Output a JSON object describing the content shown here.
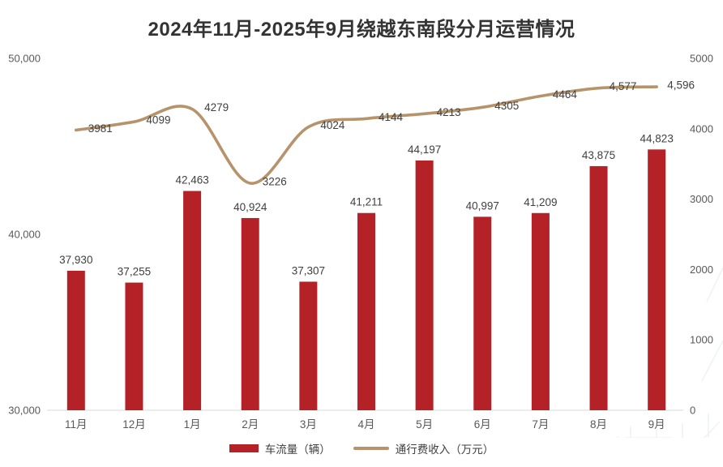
{
  "chart_data": {
    "type": "combo",
    "title": "2024年11月-2025年9月绕越东南段分月运营情况",
    "categories": [
      "11月",
      "12月",
      "1月",
      "2月",
      "3月",
      "4月",
      "5月",
      "6月",
      "7月",
      "8月",
      "9月"
    ],
    "series": [
      {
        "name": "车流量（辆）",
        "type": "bar",
        "axis": "left",
        "color": "#b42127",
        "values": [
          37930,
          37255,
          42463,
          40924,
          37307,
          41211,
          44197,
          40997,
          41209,
          43875,
          44823
        ],
        "labels": [
          "37,930",
          "37,255",
          "42,463",
          "40,924",
          "37,307",
          "41,211",
          "44,197",
          "40,997",
          "41,209",
          "43,875",
          "44,823"
        ]
      },
      {
        "name": "通行费收入（万元）",
        "type": "line",
        "axis": "right",
        "color": "#b6936b",
        "values": [
          3981,
          4099,
          4279,
          3226,
          4024,
          4144,
          4213,
          4305,
          4464,
          4577,
          4596
        ],
        "labels": [
          "3981",
          "4099",
          "4279",
          "3226",
          "4024",
          "4144",
          "4213",
          "4305",
          "4464",
          "4,577",
          "4,596"
        ]
      }
    ],
    "left_axis": {
      "min": 30000,
      "max": 50000,
      "tick_values": [
        50000,
        40000,
        30000
      ],
      "tick_labels": [
        "50,000",
        "40,000",
        "30,000"
      ]
    },
    "right_axis": {
      "min": 0,
      "max": 5000,
      "tick_values": [
        5000,
        4000,
        3000,
        2000,
        1000,
        0
      ],
      "tick_labels": [
        "5000",
        "4000",
        "3000",
        "2000",
        "1000",
        "0"
      ]
    },
    "legend_position": "bottom",
    "grid": false,
    "colors": {
      "axis_line": "#d9d9d9",
      "tick_text": "#595959",
      "data_label_text": "#404040",
      "title_text": "#333333",
      "watermark": "#e9eff5"
    }
  }
}
